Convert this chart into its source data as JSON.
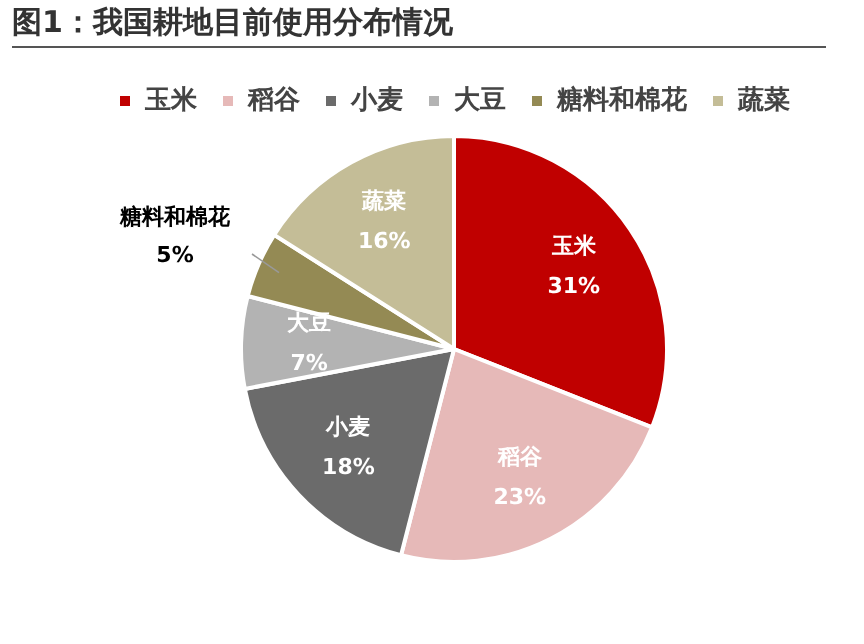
{
  "chart_data": {
    "type": "pie",
    "title": "图1：我国耕地目前使用分布情况",
    "categories": [
      "玉米",
      "稻谷",
      "小麦",
      "大豆",
      "糖料和棉花",
      "蔬菜"
    ],
    "values": [
      31,
      23,
      18,
      7,
      5,
      16
    ],
    "value_labels": [
      "31%",
      "23%",
      "18%",
      "7%",
      "5%",
      "16%"
    ],
    "colors": [
      "#c00000",
      "#e6b9b8",
      "#6b6b6b",
      "#b3b3b3",
      "#948a54",
      "#c4bd97"
    ],
    "legend": "top"
  }
}
